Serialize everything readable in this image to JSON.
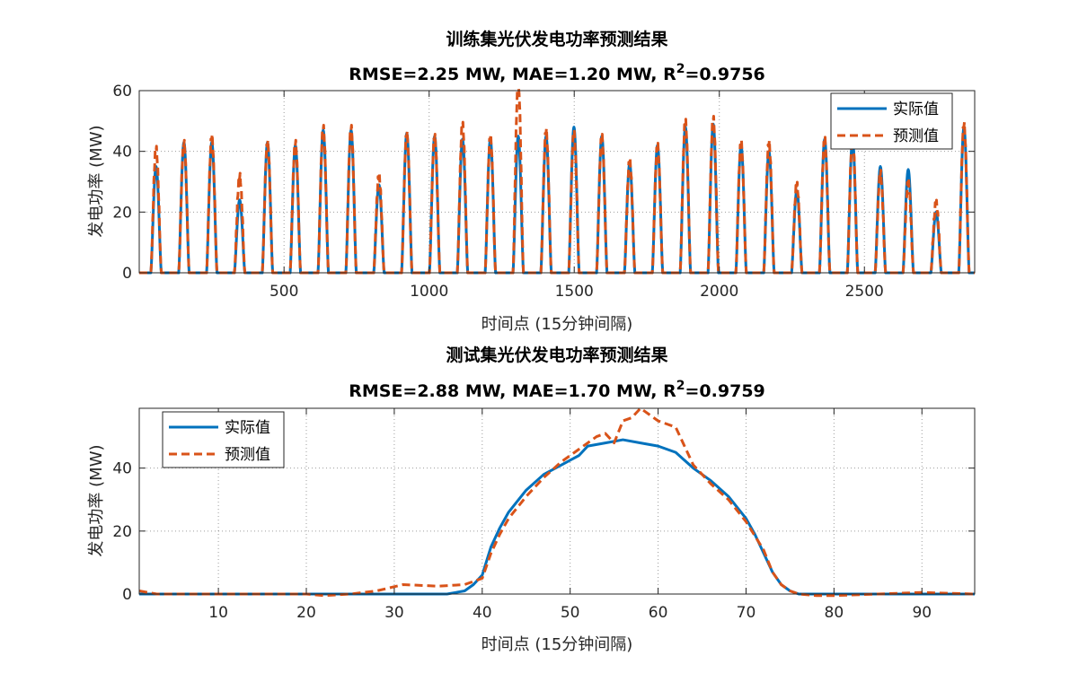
{
  "chart_data": [
    {
      "type": "line",
      "title": "训练集光伏发电功率预测结果",
      "subtitle_prefix": "RMSE=2.25 MW,  MAE=1.20 MW,  R",
      "subtitle_sup": "2",
      "subtitle_suffix": "=0.9756",
      "xlabel": "时间点 (15分钟间隔)",
      "ylabel": "发电功率 (MW)",
      "xlim": [
        1,
        2880
      ],
      "ylim": [
        0,
        60
      ],
      "xticks": [
        500,
        1000,
        1500,
        2000,
        2500
      ],
      "yticks": [
        0,
        20,
        40,
        60
      ],
      "grid": true,
      "legend_position": "top-right",
      "day_length": 96,
      "day_start_offset": 40,
      "day_width": 36,
      "series": [
        {
          "name": "实际值",
          "color": "#0072BD",
          "style": "solid",
          "daily_peaks": [
            35,
            43,
            43,
            24,
            43,
            42,
            47,
            47,
            29,
            46,
            45,
            44,
            44,
            45,
            45,
            48,
            45,
            36,
            42,
            48,
            49,
            42,
            40,
            27,
            44,
            44,
            35,
            34,
            20,
            48
          ]
        },
        {
          "name": "预测值",
          "color": "#D95319",
          "style": "dashed",
          "daily_peaks": [
            41,
            43,
            45,
            32,
            43,
            43,
            48,
            48,
            32,
            46,
            45,
            49,
            45,
            63,
            47,
            46,
            45,
            37,
            42,
            50,
            51,
            43,
            43,
            29,
            44,
            45,
            33,
            30,
            23,
            49
          ]
        }
      ]
    },
    {
      "type": "line",
      "title": "测试集光伏发电功率预测结果",
      "subtitle_prefix": "RMSE=2.88 MW,  MAE=1.70 MW,  R",
      "subtitle_sup": "2",
      "subtitle_suffix": "=0.9759",
      "xlabel": "时间点 (15分钟间隔)",
      "ylabel": "发电功率 (MW)",
      "xlim": [
        1,
        96
      ],
      "ylim": [
        0,
        59
      ],
      "xticks": [
        10,
        20,
        30,
        40,
        50,
        60,
        70,
        80,
        90
      ],
      "yticks": [
        0,
        20,
        40
      ],
      "grid": true,
      "legend_position": "top-left",
      "series": [
        {
          "name": "实际值",
          "color": "#0072BD",
          "style": "solid",
          "x": [
            1,
            10,
            20,
            30,
            36,
            38,
            39,
            40,
            41,
            42,
            43,
            45,
            47,
            49,
            51,
            52,
            54,
            56,
            58,
            60,
            62,
            64,
            66,
            68,
            70,
            71,
            72,
            73,
            74,
            75,
            76,
            77,
            80,
            90,
            96
          ],
          "y": [
            0,
            0,
            0,
            0,
            0,
            1,
            3,
            6,
            15,
            21,
            26,
            33,
            38,
            41,
            44,
            47,
            48,
            49,
            48,
            47,
            45,
            40,
            36,
            31,
            24,
            19,
            13,
            7,
            3,
            1,
            0,
            0,
            0,
            0,
            0
          ]
        },
        {
          "name": "预测值",
          "color": "#D95319",
          "style": "dashed",
          "x": [
            1,
            3,
            5,
            10,
            20,
            22,
            25,
            28,
            31,
            35,
            38,
            40,
            41,
            42,
            43,
            45,
            47,
            49,
            51,
            53,
            54,
            55,
            56,
            57,
            58,
            59,
            60,
            62,
            64,
            66,
            68,
            70,
            72,
            73,
            74,
            75,
            76,
            78,
            80,
            85,
            90,
            96
          ],
          "y": [
            1,
            0,
            0,
            0,
            0,
            -0.5,
            0,
            1,
            3,
            2.5,
            3,
            5,
            13,
            19,
            24,
            31,
            37,
            42,
            46,
            50,
            51,
            48,
            55,
            56,
            59,
            57,
            55,
            53,
            41,
            35,
            30,
            23,
            14,
            7,
            3,
            1,
            0,
            -0.5,
            -0.5,
            0,
            0.5,
            0
          ]
        }
      ]
    }
  ]
}
